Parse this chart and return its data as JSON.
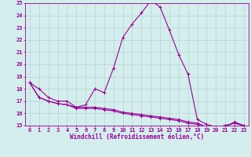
{
  "xlabel": "Windchill (Refroidissement éolien,°C)",
  "background_color": "#d4eeee",
  "grid_color": "#b0cccc",
  "line_color": "#990099",
  "x_values": [
    0,
    1,
    2,
    3,
    4,
    5,
    6,
    7,
    8,
    9,
    10,
    11,
    12,
    13,
    14,
    15,
    16,
    17,
    18,
    19,
    20,
    21,
    22,
    23
  ],
  "temp_line": [
    18.5,
    18.0,
    17.3,
    17.0,
    17.0,
    16.5,
    16.7,
    18.0,
    17.7,
    19.7,
    22.2,
    23.3,
    24.2,
    25.2,
    24.7,
    22.8,
    20.8,
    19.2,
    15.5,
    15.1,
    14.9,
    14.9,
    15.3,
    15.0
  ],
  "wind_line1": [
    18.5,
    17.3,
    17.0,
    16.8,
    16.7,
    16.5,
    16.5,
    16.5,
    16.4,
    16.3,
    16.1,
    16.0,
    15.9,
    15.8,
    15.7,
    15.6,
    15.5,
    15.3,
    15.2,
    14.9,
    14.9,
    15.0,
    15.2,
    15.0
  ],
  "wind_line2": [
    18.5,
    17.3,
    17.0,
    16.8,
    16.7,
    16.4,
    16.4,
    16.4,
    16.3,
    16.2,
    16.0,
    15.9,
    15.8,
    15.7,
    15.6,
    15.5,
    15.4,
    15.2,
    15.1,
    14.8,
    14.9,
    15.0,
    15.2,
    15.0
  ],
  "ylim": [
    15,
    25
  ],
  "xlim": [
    -0.5,
    23.5
  ],
  "yticks": [
    15,
    16,
    17,
    18,
    19,
    20,
    21,
    22,
    23,
    24,
    25
  ],
  "xticks": [
    0,
    1,
    2,
    3,
    4,
    5,
    6,
    7,
    8,
    9,
    10,
    11,
    12,
    13,
    14,
    15,
    16,
    17,
    18,
    19,
    20,
    21,
    22,
    23
  ],
  "marker": "+",
  "markersize": 3.5,
  "linewidth": 0.8,
  "label_fontsize": 5.5,
  "tick_fontsize": 5.0
}
